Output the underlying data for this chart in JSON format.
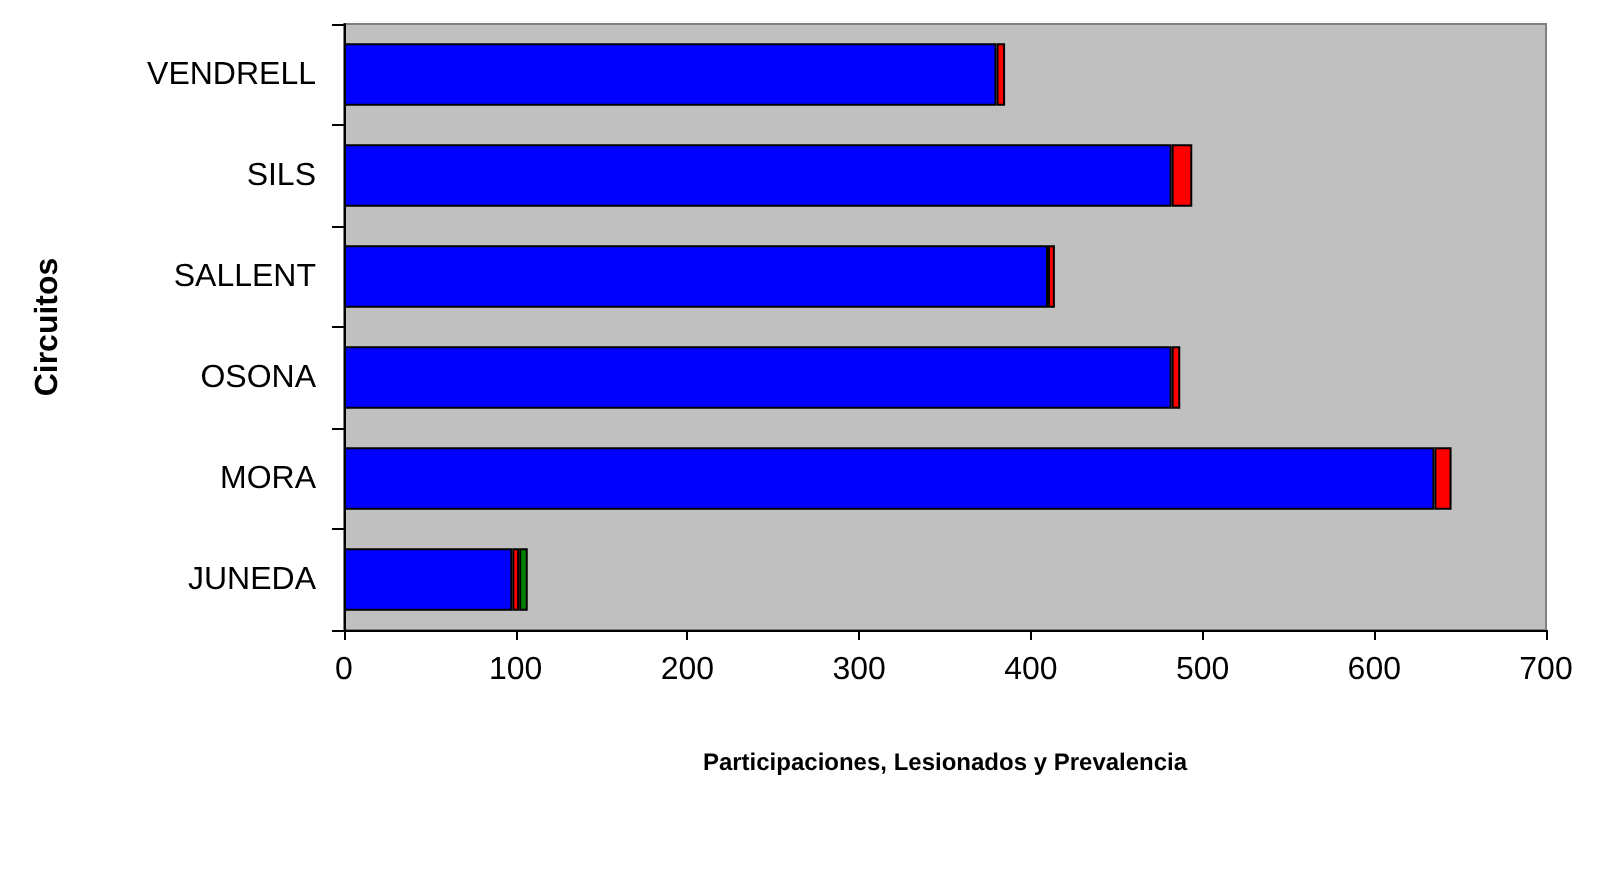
{
  "chart_data": {
    "type": "bar",
    "orientation": "horizontal",
    "stacked": true,
    "xlabel": "Participaciones, Lesionados y Prevalencia",
    "ylabel": "Circuitos",
    "categories": [
      "VENDRELL",
      "SILS",
      "SALLENT",
      "OSONA",
      "MORA",
      "JUNEDA"
    ],
    "series": [
      {
        "color": "#0000ff",
        "values": [
          380,
          482,
          410,
          482,
          635,
          98
        ]
      },
      {
        "color": "#ff0000",
        "values": [
          5,
          12,
          4,
          5,
          10,
          4
        ]
      },
      {
        "color": "#008000",
        "values": [
          null,
          null,
          null,
          null,
          null,
          5
        ]
      }
    ],
    "xlim": [
      0,
      700
    ],
    "xticks": [
      0,
      100,
      200,
      300,
      400,
      500,
      600,
      700
    ],
    "grid": false
  }
}
